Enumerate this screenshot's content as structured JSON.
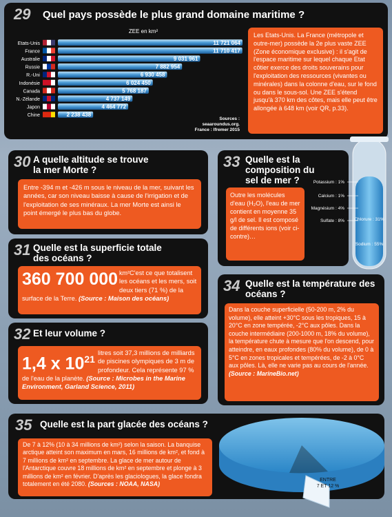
{
  "q29": {
    "number": "29",
    "title": "Quel pays possède le plus grand domaine maritime ?",
    "chart": {
      "type": "bar",
      "axis_label": "ZEE en km²",
      "categories": [
        "Etats-Unis",
        "France",
        "Australie",
        "Russie",
        "R.-Uni",
        "Indonésie",
        "Canada",
        "N.-Zélande",
        "Japon",
        "Chine"
      ],
      "values": [
        11721064,
        11710417,
        9031961,
        7882954,
        6930458,
        6024450,
        5768187,
        4737149,
        4464772,
        2238438
      ],
      "value_labels": [
        "11 721 064",
        "11 710 417",
        "9 031 961",
        "7 882 954",
        "6 930 458",
        "6 024 450",
        "5 768 187",
        "4 737 149",
        "4 464 772",
        "2 238 438"
      ],
      "source_1": "Sources :",
      "source_2": "seaaroundus.org.",
      "source_3": "France : Ifremer 2015"
    },
    "text": "Les Etats-Unis. La France (métropole et outre-mer) possède la 2e plus vaste ZEE (Zone économique exclusive) : il s'agit de l'espace maritime sur lequel chaque Etat côtier exerce des droits souverains pour l'exploitation des ressources (vivantes ou minérales) dans la colonne d'eau, sur le fond ou dans le sous-sol. Une ZEE s'étend jusqu'à 370 km des côtes, mais elle peut être allongée à 648 km (voir QR, p.33)."
  },
  "q30": {
    "number": "30",
    "title": "A quelle altitude se trouve la mer Morte ?",
    "text": "Entre -394 m et -426 m sous le niveau de la mer, suivant les années, car son niveau baisse à cause de l'irrigation et de l'exploitation de ses minéraux. La mer Morte est ainsi le point émergé le plus bas du globe."
  },
  "q31": {
    "number": "31",
    "title": "Quelle est la superficie totale des océans ?",
    "big": "360 700 000",
    "unit": "km²",
    "text": "C'est ce que totalisent les océans et les mers, soit deux tiers (71 %) de la surface de la Terre.",
    "source": "(Source : Maison des océans)"
  },
  "q32": {
    "number": "32",
    "title": "Et leur volume ?",
    "big": "1,4 x 10",
    "exponent": "21",
    "text": "litres soit 37,3 millions de milliards de piscines olympiques de 3 m de profondeur. Cela représente 97 % de l'eau de la planète.",
    "source": "(Source : Microbes in the Marine Environment, Garland Science, 2011)"
  },
  "q33": {
    "number": "33",
    "title": "Quelle est la composition du sel de mer ?",
    "text": "Outre les molécules d'eau (H₂O), l'eau de mer contient en moyenne 35 g/l de sel. Il est composé de différents ions (voir ci-contre)…",
    "ions": [
      "Potassium : 1%",
      "Calcium : 1%",
      "Magnésium : 4%",
      "Sulfate : 8%",
      "Chlorure : 31%",
      "Sodium : 55%"
    ]
  },
  "q34": {
    "number": "34",
    "title": "Quelle est la température des océans ?",
    "text": "Dans la couche superficielle (50-200 m, 2% du volume), elle atteint +30°C sous les tropiques, 15 à 20°C en zone tempérée, -2°C aux pôles. Dans la couche intermédiaire (200-1000 m, 18% du volume), la température chute à mesure que l'on descend, pour atteindre, en eaux profondes (80% du volume), de 0 à 5°C en zones tropicales et tempérées, de -2 à 0°C aux pôles. Là, elle ne varie pas au cours de l'année.",
    "source": "(Source : MarineBio.net)"
  },
  "q35": {
    "number": "35",
    "title": "Quelle est la part glacée des océans ?",
    "text": "De 7 à 12% (10 à 34 millions de km²) selon la saison. La banquise arctique atteint son maximum en mars, 16 millions de km², et fond à 7 millions de km² en septembre. La glace de mer autour de l'Antarctique couvre 18 millions de km² en septembre et plonge à 3 millions de km² en février. D'après les glaciologues, la glace fondra totalement en été 2080.",
    "source": "(Sources : NOAA, NASA)",
    "ice_label_1": "ENTRE",
    "ice_label_2": "7 ET 12 %"
  }
}
